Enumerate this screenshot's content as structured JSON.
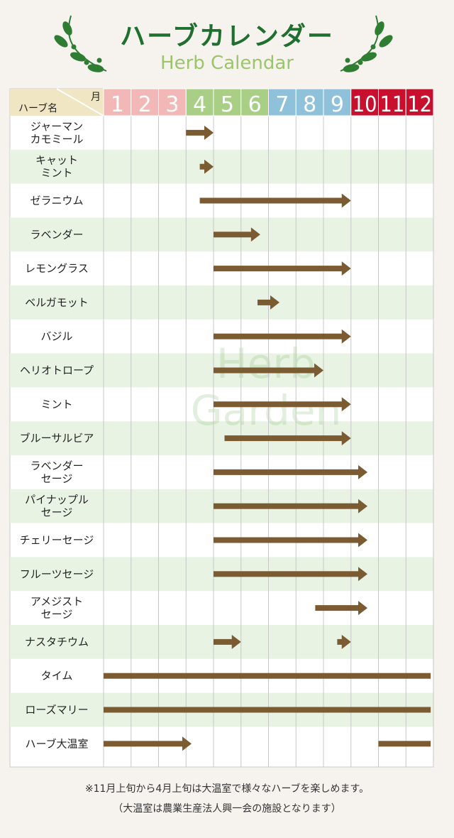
{
  "page": {
    "title": "ハーブカレンダー",
    "subtitle": "Herb Calendar",
    "header_month": "月",
    "header_name": "ハーブ名",
    "watermark_line1": "Herb",
    "watermark_line2": "Garden",
    "note1": "※11月上旬から4月上旬は大温室で様々なハーブを楽しめます。",
    "note2": "（大温室は農業生産法人興一会の施設となります）"
  },
  "colors": {
    "title": "#1f6f2e",
    "subtitle": "#9cc46a",
    "bar": "#7a5b32",
    "month_winter": "#f2b7b7",
    "month_spring": "#a9cf86",
    "month_summer": "#8fc1db",
    "month_autumn": "#c8102e",
    "band": "#e9f3e4",
    "grid": "#c8c8c8",
    "header_bg": "#f0e6c4"
  },
  "chart_data": {
    "type": "gantt",
    "months": [
      {
        "label": "1",
        "color": "winter"
      },
      {
        "label": "2",
        "color": "winter"
      },
      {
        "label": "3",
        "color": "winter"
      },
      {
        "label": "4",
        "color": "spring"
      },
      {
        "label": "5",
        "color": "spring"
      },
      {
        "label": "6",
        "color": "spring"
      },
      {
        "label": "7",
        "color": "summer"
      },
      {
        "label": "8",
        "color": "summer"
      },
      {
        "label": "9",
        "color": "summer"
      },
      {
        "label": "10",
        "color": "autumn"
      },
      {
        "label": "11",
        "color": "autumn"
      },
      {
        "label": "12",
        "color": "autumn"
      }
    ],
    "rows": [
      {
        "name": "ジャーマン\nカモミール",
        "bars": [
          {
            "start": 4.0,
            "end": 5.0,
            "arrow": true
          }
        ]
      },
      {
        "name": "キャット\nミント",
        "bars": [
          {
            "start": 4.5,
            "end": 5.0,
            "arrow": true
          }
        ]
      },
      {
        "name": "ゼラニウム",
        "bars": [
          {
            "start": 4.5,
            "end": 10.0,
            "arrow": true
          }
        ]
      },
      {
        "name": "ラベンダー",
        "bars": [
          {
            "start": 5.0,
            "end": 6.7,
            "arrow": true
          }
        ]
      },
      {
        "name": "レモングラス",
        "bars": [
          {
            "start": 5.0,
            "end": 10.0,
            "arrow": true
          }
        ]
      },
      {
        "name": "ベルガモット",
        "bars": [
          {
            "start": 6.6,
            "end": 7.4,
            "arrow": true
          }
        ]
      },
      {
        "name": "バジル",
        "bars": [
          {
            "start": 5.0,
            "end": 10.0,
            "arrow": true
          }
        ]
      },
      {
        "name": "ヘリオトロープ",
        "bars": [
          {
            "start": 5.0,
            "end": 9.0,
            "arrow": true
          }
        ]
      },
      {
        "name": "ミント",
        "bars": [
          {
            "start": 5.0,
            "end": 10.0,
            "arrow": true
          }
        ]
      },
      {
        "name": "ブルーサルビア",
        "bars": [
          {
            "start": 5.4,
            "end": 10.0,
            "arrow": true
          }
        ]
      },
      {
        "name": "ラベンダー\nセージ",
        "bars": [
          {
            "start": 5.0,
            "end": 10.6,
            "arrow": true
          }
        ]
      },
      {
        "name": "パイナップル\nセージ",
        "bars": [
          {
            "start": 5.0,
            "end": 10.6,
            "arrow": true
          }
        ]
      },
      {
        "name": "チェリーセージ",
        "bars": [
          {
            "start": 5.0,
            "end": 10.6,
            "arrow": true
          }
        ]
      },
      {
        "name": "フルーツセージ",
        "bars": [
          {
            "start": 5.0,
            "end": 10.6,
            "arrow": true
          }
        ]
      },
      {
        "name": "アメジスト\nセージ",
        "bars": [
          {
            "start": 8.7,
            "end": 10.6,
            "arrow": true
          }
        ]
      },
      {
        "name": "ナスタチウム",
        "bars": [
          {
            "start": 5.0,
            "end": 6.0,
            "arrow": true
          },
          {
            "start": 9.5,
            "end": 10.0,
            "arrow": true
          }
        ]
      },
      {
        "name": "タイム",
        "bars": [
          {
            "start": 1.0,
            "end": 12.9,
            "arrow": false
          }
        ]
      },
      {
        "name": "ローズマリー",
        "bars": [
          {
            "start": 1.0,
            "end": 12.9,
            "arrow": false
          }
        ]
      },
      {
        "name": "ハーブ大温室",
        "bars": [
          {
            "start": 1.0,
            "end": 4.2,
            "arrow": true
          },
          {
            "start": 11.0,
            "end": 12.9,
            "arrow": false
          }
        ]
      }
    ]
  }
}
